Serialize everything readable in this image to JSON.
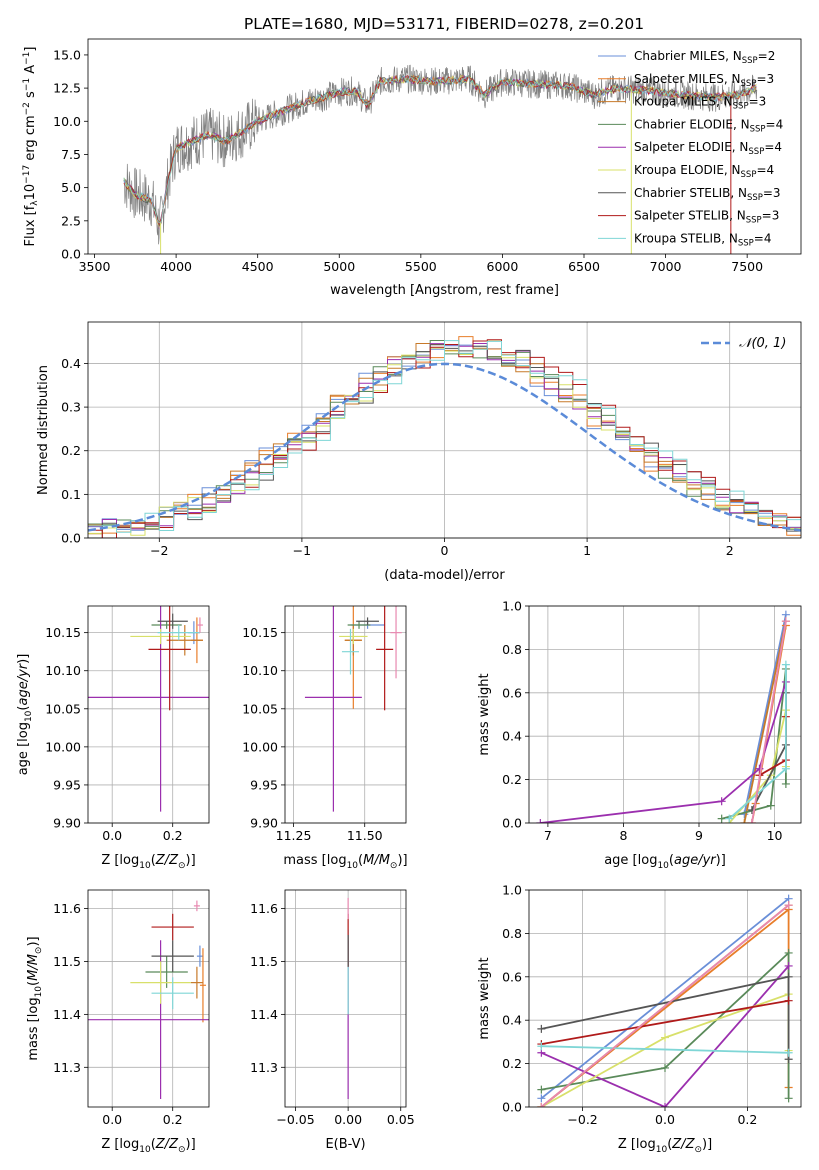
{
  "title": "PLATE=1680, MJD=53171, FIBERID=0278, z=0.201",
  "colors": {
    "Chabrier MILES": "#6a8fd8",
    "Salpeter MILES": "#e87e2a",
    "Kroupa MILES": "#c77a2a",
    "Chabrier ELODIE": "#5a8a5a",
    "Salpeter ELODIE": "#9b2fae",
    "Kroupa ELODIE": "#d8e06a",
    "Chabrier STELIB": "#555555",
    "Salpeter STELIB": "#b01a1a",
    "Kroupa STELIB": "#7fd6d6",
    "pink": "#e888b0",
    "data": "#808080",
    "gauss": "#5b8bd8"
  },
  "chart_data": [
    {
      "type": "line",
      "name": "spectrum",
      "xlabel": "wavelength [Angstrom, rest frame]",
      "ylabel": "Flux [f_λ10^-17 erg cm^-2 s^-1 A^-1]",
      "ylabel_parts": [
        "Flux [f",
        "λ",
        "10",
        "−17",
        " erg cm",
        "−2",
        " s",
        "−1",
        " A",
        "−1",
        "]"
      ],
      "xlim": [
        3460,
        7830
      ],
      "ylim": [
        0,
        16.2
      ],
      "xticks": [
        3500,
        4000,
        4500,
        5000,
        5500,
        6000,
        6500,
        7000,
        7500
      ],
      "yticks": [
        0.0,
        2.5,
        5.0,
        7.5,
        10.0,
        12.5,
        15.0
      ],
      "continuum_points": [
        [
          3680,
          5.5
        ],
        [
          3750,
          4.5
        ],
        [
          3850,
          4.0
        ],
        [
          3900,
          2.0
        ],
        [
          3950,
          5.5
        ],
        [
          4000,
          8.0
        ],
        [
          4100,
          8.5
        ],
        [
          4200,
          9.0
        ],
        [
          4300,
          8.5
        ],
        [
          4400,
          9.2
        ],
        [
          4500,
          10.0
        ],
        [
          4600,
          10.5
        ],
        [
          4700,
          11.0
        ],
        [
          4800,
          11.5
        ],
        [
          4900,
          11.8
        ],
        [
          5000,
          12.2
        ],
        [
          5100,
          12.3
        ],
        [
          5175,
          11.2
        ],
        [
          5250,
          13.0
        ],
        [
          5400,
          13.2
        ],
        [
          5600,
          13.0
        ],
        [
          5800,
          13.2
        ],
        [
          5890,
          12.0
        ],
        [
          6000,
          13.0
        ],
        [
          6200,
          12.8
        ],
        [
          6400,
          12.7
        ],
        [
          6560,
          12.0
        ],
        [
          6700,
          12.5
        ],
        [
          6900,
          12.3
        ],
        [
          7100,
          12.0
        ],
        [
          7300,
          11.8
        ],
        [
          7450,
          12.0
        ],
        [
          7550,
          12.5
        ]
      ],
      "legend": [
        {
          "label": "Chabrier MILES, N",
          "sub": "SSP",
          "tail": "=2",
          "color": "#6a8fd8"
        },
        {
          "label": "Salpeter MILES, N",
          "sub": "SSP",
          "tail": "=3",
          "color": "#e87e2a"
        },
        {
          "label": "Kroupa MILES, N",
          "sub": "SSP",
          "tail": "=3",
          "color": "#c77a2a"
        },
        {
          "label": "Chabrier ELODIE, N",
          "sub": "SSP",
          "tail": "=4",
          "color": "#5a8a5a"
        },
        {
          "label": "Salpeter ELODIE, N",
          "sub": "SSP",
          "tail": "=4",
          "color": "#9b2fae"
        },
        {
          "label": "Kroupa ELODIE, N",
          "sub": "SSP",
          "tail": "=4",
          "color": "#d8e06a"
        },
        {
          "label": "Chabrier STELIB, N",
          "sub": "SSP",
          "tail": "=3",
          "color": "#555555"
        },
        {
          "label": "Salpeter STELIB, N",
          "sub": "SSP",
          "tail": "=3",
          "color": "#b01a1a"
        },
        {
          "label": "Kroupa STELIB, N",
          "sub": "SSP",
          "tail": "=4",
          "color": "#7fd6d6"
        }
      ]
    },
    {
      "type": "line",
      "name": "residual-histogram",
      "xlabel": "(data-model)/error",
      "ylabel": "Normed distribution",
      "xlim": [
        -2.5,
        2.5
      ],
      "ylim": [
        0,
        0.495
      ],
      "xticks": [
        -2,
        -1,
        0,
        1,
        2
      ],
      "yticks": [
        0.0,
        0.1,
        0.2,
        0.3,
        0.4
      ],
      "legend": [
        {
          "label": "𝒩(0, 1)",
          "color": "#5b8bd8",
          "style": "dashed"
        }
      ],
      "bin_width": 0.1
    },
    {
      "type": "scatter",
      "name": "age-vs-Z",
      "xlabel": "Z [log10(Z/Z⊙)]",
      "ylabel": "age  [log10(age/yr)]",
      "xlim": [
        -0.08,
        0.32
      ],
      "ylim": [
        9.9,
        10.185
      ],
      "xticks": [
        0.0,
        0.2
      ],
      "yticks": [
        9.9,
        9.95,
        10.0,
        10.05,
        10.1,
        10.15
      ],
      "points": [
        {
          "c": "Chabrier MILES",
          "x": 0.27,
          "y": 10.15,
          "xe": 0.02,
          "ye": 0.015
        },
        {
          "c": "Salpeter MILES",
          "x": 0.28,
          "y": 10.14,
          "xe": 0.02,
          "ye": 0.03
        },
        {
          "c": "Kroupa MILES",
          "x": 0.24,
          "y": 10.14,
          "xe": 0.06,
          "ye": 0.02
        },
        {
          "c": "Chabrier ELODIE",
          "x": 0.18,
          "y": 10.16,
          "xe": 0.05,
          "ye": 0.005
        },
        {
          "c": "Salpeter ELODIE",
          "x": 0.16,
          "y": 10.065,
          "xe": 0.27,
          "ye": 0.15
        },
        {
          "c": "Kroupa ELODIE",
          "x": 0.16,
          "y": 10.145,
          "xe": 0.1,
          "ye": 0.01
        },
        {
          "c": "Chabrier STELIB",
          "x": 0.2,
          "y": 10.165,
          "xe": 0.05,
          "ye": 0.01
        },
        {
          "c": "Salpeter STELIB",
          "x": 0.19,
          "y": 10.128,
          "xe": 0.07,
          "ye": 0.08
        },
        {
          "c": "Kroupa STELIB",
          "x": 0.22,
          "y": 10.15,
          "xe": 0.07,
          "ye": 0.01
        },
        {
          "c": "pink",
          "x": 0.29,
          "y": 10.16,
          "xe": 0.01,
          "ye": 0.01
        }
      ]
    },
    {
      "type": "scatter",
      "name": "age-vs-mass",
      "xlabel": "mass [log10(M/M⊙)]",
      "ylabel": "",
      "xlim": [
        11.22,
        11.645
      ],
      "ylim": [
        9.9,
        10.185
      ],
      "xticks": [
        11.25,
        11.5
      ],
      "yticks": [
        9.9,
        9.95,
        10.0,
        10.05,
        10.1,
        10.15
      ],
      "points": [
        {
          "c": "Chabrier MILES",
          "x": 11.51,
          "y": 10.16,
          "xe": 0.06,
          "ye": 0.005
        },
        {
          "c": "Salpeter MILES",
          "x": 11.46,
          "y": 10.14,
          "xe": 0.03,
          "ye": 0.09
        },
        {
          "c": "Kroupa MILES",
          "x": 11.46,
          "y": 10.14,
          "xe": 0.03,
          "ye": 0.02
        },
        {
          "c": "Chabrier ELODIE",
          "x": 11.48,
          "y": 10.16,
          "xe": 0.04,
          "ye": 0.005
        },
        {
          "c": "Salpeter ELODIE",
          "x": 11.39,
          "y": 10.065,
          "xe": 0.1,
          "ye": 0.15
        },
        {
          "c": "Kroupa ELODIE",
          "x": 11.46,
          "y": 10.145,
          "xe": 0.05,
          "ye": 0.01
        },
        {
          "c": "Chabrier STELIB",
          "x": 11.51,
          "y": 10.165,
          "xe": 0.04,
          "ye": 0.005
        },
        {
          "c": "Salpeter STELIB",
          "x": 11.57,
          "y": 10.128,
          "xe": 0.03,
          "ye": 0.08
        },
        {
          "c": "Kroupa STELIB",
          "x": 11.45,
          "y": 10.125,
          "xe": 0.03,
          "ye": 0.03
        },
        {
          "c": "pink",
          "x": 11.61,
          "y": 10.15,
          "xe": 0.02,
          "ye": 0.06
        }
      ]
    },
    {
      "type": "line",
      "name": "mass-weight-vs-age",
      "xlabel": "age  [log10(age/yr)]",
      "ylabel": "mass weight",
      "xlim": [
        6.75,
        10.35
      ],
      "ylim": [
        0,
        1.0
      ],
      "xticks": [
        7,
        8,
        9,
        10
      ],
      "yticks": [
        0.0,
        0.2,
        0.4,
        0.6,
        0.8,
        1.0
      ],
      "series": [
        {
          "c": "Chabrier MILES",
          "points": [
            [
              9.6,
              0.04
            ],
            [
              10.15,
              0.96
            ]
          ]
        },
        {
          "c": "Salpeter MILES",
          "points": [
            [
              9.7,
              0.0
            ],
            [
              9.75,
              0.09
            ],
            [
              10.15,
              0.91
            ]
          ]
        },
        {
          "c": "Kroupa MILES",
          "points": [
            [
              9.6,
              0.0
            ],
            [
              10.15,
              0.93
            ]
          ]
        },
        {
          "c": "Chabrier ELODIE",
          "points": [
            [
              9.3,
              0.02
            ],
            [
              9.95,
              0.08
            ],
            [
              10.15,
              0.71
            ],
            [
              10.15,
              0.18
            ]
          ]
        },
        {
          "c": "Salpeter ELODIE",
          "points": [
            [
              6.9,
              0.0
            ],
            [
              9.3,
              0.1
            ],
            [
              9.8,
              0.25
            ],
            [
              10.15,
              0.65
            ]
          ]
        },
        {
          "c": "Kroupa ELODIE",
          "points": [
            [
              9.4,
              0.0
            ],
            [
              9.95,
              0.22
            ],
            [
              10.15,
              0.52
            ],
            [
              10.15,
              0.26
            ]
          ]
        },
        {
          "c": "Chabrier STELIB",
          "points": [
            [
              9.7,
              0.06
            ],
            [
              10.15,
              0.36
            ],
            [
              10.15,
              0.6
            ]
          ]
        },
        {
          "c": "Salpeter STELIB",
          "points": [
            [
              9.8,
              0.22
            ],
            [
              10.15,
              0.29
            ],
            [
              10.15,
              0.49
            ]
          ]
        },
        {
          "c": "Kroupa STELIB",
          "points": [
            [
              9.4,
              0.02
            ],
            [
              10.15,
              0.25
            ],
            [
              10.15,
              0.73
            ]
          ]
        },
        {
          "c": "pink",
          "points": [
            [
              9.7,
              0.0
            ],
            [
              10.15,
              0.93
            ]
          ]
        }
      ]
    },
    {
      "type": "scatter",
      "name": "mass-vs-Z",
      "xlabel": "Z [log10(Z/Z⊙)]",
      "ylabel": "mass [log10(M/M⊙)]",
      "xlim": [
        -0.08,
        0.32
      ],
      "ylim": [
        11.225,
        11.635
      ],
      "xticks": [
        0.0,
        0.2
      ],
      "yticks": [
        11.3,
        11.4,
        11.5,
        11.6
      ],
      "points": [
        {
          "c": "Chabrier MILES",
          "x": 0.29,
          "y": 11.51,
          "xe": 0.01,
          "ye": 0.02
        },
        {
          "c": "Salpeter MILES",
          "x": 0.3,
          "y": 11.455,
          "xe": 0.01,
          "ye": 0.07
        },
        {
          "c": "Kroupa MILES",
          "x": 0.28,
          "y": 11.46,
          "xe": 0.02,
          "ye": 0.03
        },
        {
          "c": "Chabrier ELODIE",
          "x": 0.18,
          "y": 11.48,
          "xe": 0.07,
          "ye": 0.03
        },
        {
          "c": "Salpeter ELODIE",
          "x": 0.16,
          "y": 11.39,
          "xe": 0.27,
          "ye": 0.15
        },
        {
          "c": "Kroupa ELODIE",
          "x": 0.16,
          "y": 11.46,
          "xe": 0.1,
          "ye": 0.04
        },
        {
          "c": "Chabrier STELIB",
          "x": 0.2,
          "y": 11.51,
          "xe": 0.07,
          "ye": 0.03
        },
        {
          "c": "Salpeter STELIB",
          "x": 0.2,
          "y": 11.565,
          "xe": 0.07,
          "ye": 0.025
        },
        {
          "c": "Kroupa STELIB",
          "x": 0.2,
          "y": 11.44,
          "xe": 0.07,
          "ye": 0.03
        },
        {
          "c": "pink",
          "x": 0.28,
          "y": 11.605,
          "xe": 0.01,
          "ye": 0.01
        }
      ]
    },
    {
      "type": "scatter",
      "name": "mass-vs-EBV",
      "xlabel": "E(B-V)",
      "ylabel": "",
      "xlim": [
        -0.06,
        0.055
      ],
      "ylim": [
        11.225,
        11.635
      ],
      "xticks": [
        -0.05,
        0.0,
        0.05
      ],
      "yticks": [
        11.3,
        11.4,
        11.5,
        11.6
      ],
      "points": [
        {
          "c": "Salpeter ELODIE",
          "x": 0.0,
          "y": 11.39,
          "xe": 0.0,
          "ye": 0.15
        },
        {
          "c": "Kroupa STELIB",
          "x": 0.0,
          "y": 11.48,
          "xe": 0.0,
          "ye": 0.08
        },
        {
          "c": "Salpeter STELIB",
          "x": 0.0,
          "y": 11.54,
          "xe": 0.0,
          "ye": 0.05
        },
        {
          "c": "Chabrier STELIB",
          "x": 0.0,
          "y": 11.52,
          "xe": 0.0,
          "ye": 0.03
        },
        {
          "c": "pink",
          "x": 0.0,
          "y": 11.6,
          "xe": 0.0,
          "ye": 0.02
        }
      ]
    },
    {
      "type": "line",
      "name": "mass-weight-vs-Z",
      "xlabel": "Z [log10(Z/Z⊙)]",
      "ylabel": "mass weight",
      "xlim": [
        -0.33,
        0.33
      ],
      "ylim": [
        0,
        1.0
      ],
      "xticks": [
        -0.2,
        0.0,
        0.2
      ],
      "yticks": [
        0.0,
        0.2,
        0.4,
        0.6,
        0.8,
        1.0
      ],
      "series": [
        {
          "c": "Chabrier MILES",
          "points": [
            [
              -0.3,
              0.04
            ],
            [
              0.3,
              0.96
            ]
          ]
        },
        {
          "c": "Salpeter MILES",
          "points": [
            [
              -0.3,
              0.0
            ],
            [
              0.3,
              0.91
            ],
            [
              0.3,
              0.09
            ]
          ]
        },
        {
          "c": "Kroupa MILES",
          "points": [
            [
              -0.3,
              0.0
            ],
            [
              0.3,
              0.93
            ]
          ]
        },
        {
          "c": "Chabrier ELODIE",
          "points": [
            [
              -0.3,
              0.08
            ],
            [
              0.0,
              0.18
            ],
            [
              0.3,
              0.71
            ],
            [
              0.3,
              0.04
            ]
          ]
        },
        {
          "c": "Salpeter ELODIE",
          "points": [
            [
              -0.3,
              0.25
            ],
            [
              0.0,
              0.0
            ],
            [
              0.3,
              0.65
            ]
          ]
        },
        {
          "c": "Kroupa ELODIE",
          "points": [
            [
              -0.3,
              0.0
            ],
            [
              0.0,
              0.32
            ],
            [
              0.3,
              0.52
            ],
            [
              0.3,
              0.26
            ]
          ]
        },
        {
          "c": "Chabrier STELIB",
          "points": [
            [
              -0.3,
              0.36
            ],
            [
              0.3,
              0.6
            ],
            [
              0.3,
              0.22
            ]
          ]
        },
        {
          "c": "Salpeter STELIB",
          "points": [
            [
              -0.3,
              0.29
            ],
            [
              0.3,
              0.49
            ]
          ]
        },
        {
          "c": "Kroupa STELIB",
          "points": [
            [
              -0.3,
              0.28
            ],
            [
              0.3,
              0.25
            ]
          ]
        },
        {
          "c": "pink",
          "points": [
            [
              -0.3,
              0.0
            ],
            [
              0.3,
              0.93
            ]
          ]
        }
      ]
    }
  ]
}
